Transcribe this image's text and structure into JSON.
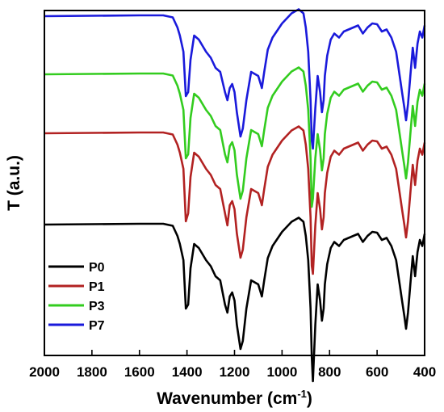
{
  "chart_data": {
    "type": "line",
    "xlabel": "Wavenumber (cm",
    "xlabel_sup": "-1",
    "xlabel_close": ")",
    "ylabel": "T (a.u.)",
    "xlim": [
      2000,
      400
    ],
    "x_reversed": true,
    "y_ticks_shown": false,
    "grid": false,
    "legend_position": "bottom-left",
    "xticks": [
      2000,
      1800,
      1600,
      1400,
      1200,
      1000,
      800,
      600,
      400
    ],
    "x": [
      2000,
      1600,
      1500,
      1460,
      1440,
      1430,
      1415,
      1405,
      1395,
      1385,
      1370,
      1350,
      1320,
      1300,
      1280,
      1260,
      1240,
      1230,
      1220,
      1210,
      1200,
      1190,
      1175,
      1165,
      1150,
      1130,
      1100,
      1085,
      1075,
      1060,
      1040,
      1000,
      960,
      930,
      910,
      900,
      890,
      880,
      875,
      870,
      860,
      850,
      840,
      832,
      825,
      820,
      810,
      795,
      780,
      760,
      740,
      700,
      680,
      660,
      640,
      620,
      600,
      580,
      560,
      540,
      520,
      505,
      495,
      485,
      478,
      470,
      460,
      450,
      440,
      430,
      420,
      410,
      400
    ],
    "series": [
      {
        "name": "P0",
        "color": "#000000",
        "values": [
          0.8,
          1.0,
          1.0,
          0.5,
          -2.0,
          -4.0,
          -8.0,
          -20.0,
          -19.0,
          -10.0,
          -4.0,
          -5.0,
          -8.0,
          -9.5,
          -12.0,
          -13.0,
          -19.0,
          -21.0,
          -17.0,
          -16.0,
          -18.0,
          -24.0,
          -30.0,
          -28.0,
          -20.0,
          -13.0,
          -14.0,
          -17.0,
          -13.0,
          -7.5,
          -4.5,
          -1.0,
          1.5,
          2.5,
          1.5,
          -2.0,
          -8.0,
          -20.0,
          -32.0,
          -38.0,
          -24.0,
          -14.0,
          -18.0,
          -23.0,
          -20.0,
          -14.0,
          -9.0,
          -5.0,
          -3.5,
          -4.5,
          -3.0,
          -2.0,
          -1.5,
          -3.5,
          -2.0,
          -1.0,
          -1.2,
          -3.0,
          -2.5,
          -4.5,
          -8.0,
          -14.0,
          -18.0,
          -22.0,
          -25.0,
          -21.0,
          -14.0,
          -7.0,
          -12.0,
          -6.0,
          -3.0,
          -4.5,
          -1.5
        ]
      },
      {
        "name": "P1",
        "color": "#b22222",
        "values": [
          0.8,
          1.0,
          1.0,
          0.5,
          -2.0,
          -4.0,
          -8.0,
          -21.0,
          -19.0,
          -10.0,
          -4.0,
          -5.0,
          -8.0,
          -9.5,
          -12.0,
          -13.0,
          -19.0,
          -22.0,
          -17.0,
          -16.0,
          -18.0,
          -24.0,
          -30.0,
          -28.0,
          -20.0,
          -13.0,
          -14.0,
          -17.0,
          -13.0,
          -7.5,
          -4.5,
          -1.0,
          1.5,
          2.5,
          1.5,
          -2.0,
          -8.0,
          -20.0,
          -32.0,
          -34.0,
          -22.0,
          -14.0,
          -18.0,
          -23.0,
          -20.0,
          -14.0,
          -9.0,
          -5.0,
          -3.5,
          -4.5,
          -3.0,
          -2.0,
          -1.5,
          -3.5,
          -2.0,
          -1.0,
          -1.2,
          -3.0,
          -2.5,
          -4.5,
          -8.0,
          -14.0,
          -18.0,
          -22.0,
          -25.0,
          -21.0,
          -14.0,
          -7.0,
          -12.0,
          -6.0,
          -3.0,
          -4.5,
          -1.5
        ]
      },
      {
        "name": "P3",
        "color": "#33cc1f",
        "values": [
          0.8,
          1.0,
          1.0,
          0.5,
          -2.0,
          -4.0,
          -8.0,
          -20.0,
          -19.0,
          -10.0,
          -4.0,
          -5.0,
          -8.0,
          -9.5,
          -12.0,
          -13.0,
          -19.0,
          -21.0,
          -17.0,
          -16.0,
          -18.0,
          -24.0,
          -30.0,
          -28.0,
          -20.0,
          -13.0,
          -14.0,
          -17.0,
          -13.0,
          -7.5,
          -4.5,
          -1.0,
          1.5,
          2.5,
          1.5,
          -2.0,
          -8.0,
          -20.0,
          -32.0,
          -30.0,
          -20.0,
          -14.0,
          -18.0,
          -23.0,
          -20.0,
          -14.0,
          -9.0,
          -5.0,
          -3.5,
          -4.5,
          -3.0,
          -2.0,
          -1.5,
          -3.5,
          -2.0,
          -1.0,
          -1.2,
          -3.0,
          -2.5,
          -4.5,
          -8.0,
          -14.0,
          -18.0,
          -22.0,
          -25.0,
          -21.0,
          -14.0,
          -7.0,
          -12.0,
          -6.0,
          -3.0,
          -4.5,
          -1.5
        ]
      },
      {
        "name": "P7",
        "color": "#1a1adb",
        "values": [
          0.8,
          1.0,
          1.0,
          0.5,
          -2.0,
          -4.0,
          -8.0,
          -19.0,
          -18.0,
          -10.0,
          -4.0,
          -5.0,
          -8.0,
          -9.5,
          -12.0,
          -13.0,
          -18.0,
          -20.0,
          -17.0,
          -16.0,
          -18.0,
          -23.0,
          -29.0,
          -27.0,
          -20.0,
          -13.0,
          -14.0,
          -17.0,
          -13.0,
          -7.5,
          -4.5,
          -1.0,
          1.5,
          2.5,
          1.5,
          -2.0,
          -8.0,
          -20.0,
          -30.0,
          -32.0,
          -22.0,
          -14.0,
          -18.0,
          -23.0,
          -20.0,
          -14.0,
          -9.0,
          -5.0,
          -3.5,
          -4.5,
          -3.0,
          -2.0,
          -1.5,
          -3.5,
          -2.0,
          -1.0,
          -1.2,
          -3.0,
          -2.5,
          -4.5,
          -8.0,
          -14.0,
          -18.0,
          -22.0,
          -25.0,
          -21.0,
          -14.0,
          -7.0,
          -12.0,
          -6.0,
          -3.0,
          -4.5,
          -1.5
        ]
      }
    ]
  }
}
